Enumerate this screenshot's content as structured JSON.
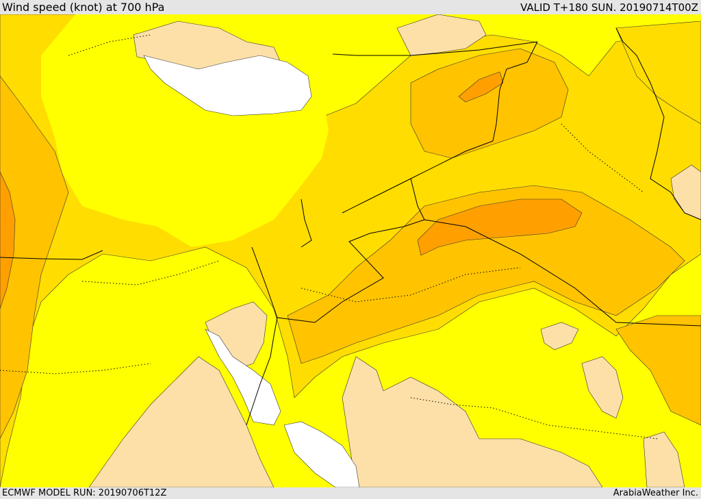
{
  "header": {
    "title": "Wind speed (knot) at 700 hPa",
    "valid_time": "VALID T+180 SUN. 20190714T00Z"
  },
  "footer": {
    "model_run": "ECMWF MODEL RUN: 20190706T12Z",
    "credit": "ArabiaWeather Inc."
  },
  "map": {
    "colors": {
      "no_data_sea": "#ffffff",
      "calm": "#fde0a8",
      "light": "#ffff00",
      "moderate": "#ffdd00",
      "fresh": "#ffc300",
      "strong": "#ffa000",
      "border": "#000000"
    }
  }
}
